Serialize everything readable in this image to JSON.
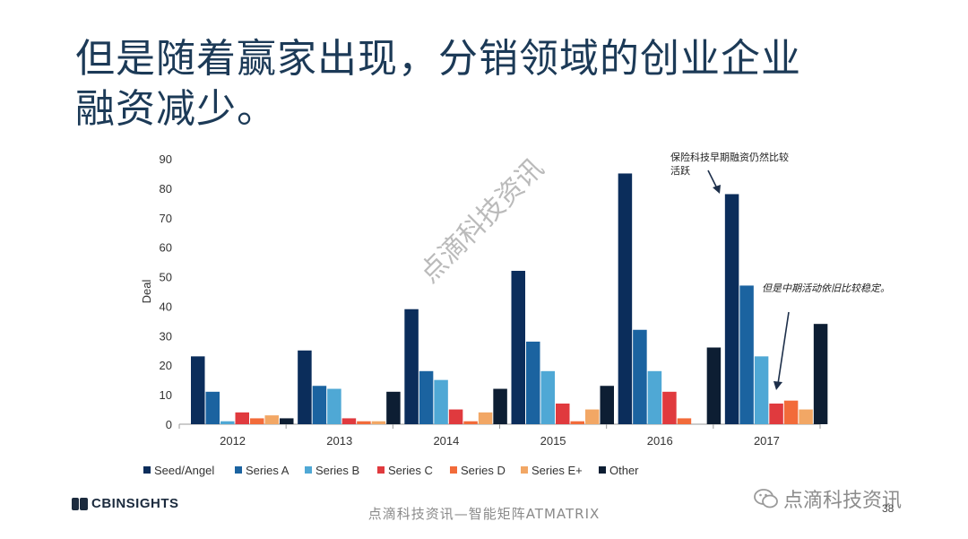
{
  "title": {
    "line1": "但是随着赢家出现，分销领域的创业企业",
    "line2": "融资减少。"
  },
  "chart_data": {
    "type": "bar",
    "categories": [
      "2012",
      "2013",
      "2014",
      "2015",
      "2016",
      "2017"
    ],
    "series": [
      {
        "name": "Seed/Angel",
        "color": "#0b2d5b",
        "values": [
          23,
          25,
          39,
          52,
          85,
          78
        ]
      },
      {
        "name": "Series A",
        "color": "#1b63a0",
        "values": [
          11,
          13,
          18,
          28,
          32,
          47
        ]
      },
      {
        "name": "Series B",
        "color": "#4fa8d5",
        "values": [
          1,
          12,
          15,
          18,
          18,
          23
        ]
      },
      {
        "name": "Series C",
        "color": "#e03a3e",
        "values": [
          4,
          2,
          5,
          7,
          11,
          7
        ]
      },
      {
        "name": "Series D",
        "color": "#f26b3a",
        "values": [
          2,
          1,
          1,
          1,
          2,
          8
        ]
      },
      {
        "name": "Series E+",
        "color": "#f2a765",
        "values": [
          3,
          1,
          4,
          5,
          0,
          5
        ]
      },
      {
        "name": "Other",
        "color": "#0d1e33",
        "values": [
          2,
          11,
          12,
          13,
          26,
          34
        ]
      }
    ],
    "ylabel": "Deal",
    "ylim": [
      0,
      90
    ],
    "yticks": [
      "0",
      "10",
      "20",
      "30",
      "40",
      "50",
      "60",
      "70",
      "80",
      "90"
    ],
    "legend_position": "bottom"
  },
  "annotations": {
    "insurtech": "保险科技早期融资仍然比较活跃",
    "midstage": "但是中期活动依旧比较稳定。"
  },
  "watermark": "点滴科技资讯",
  "logo": "CBINSIGHTS",
  "footer": "点滴科技资讯—智能矩阵ATMATRIX",
  "wechat": "点滴科技资讯",
  "page_number": "38"
}
